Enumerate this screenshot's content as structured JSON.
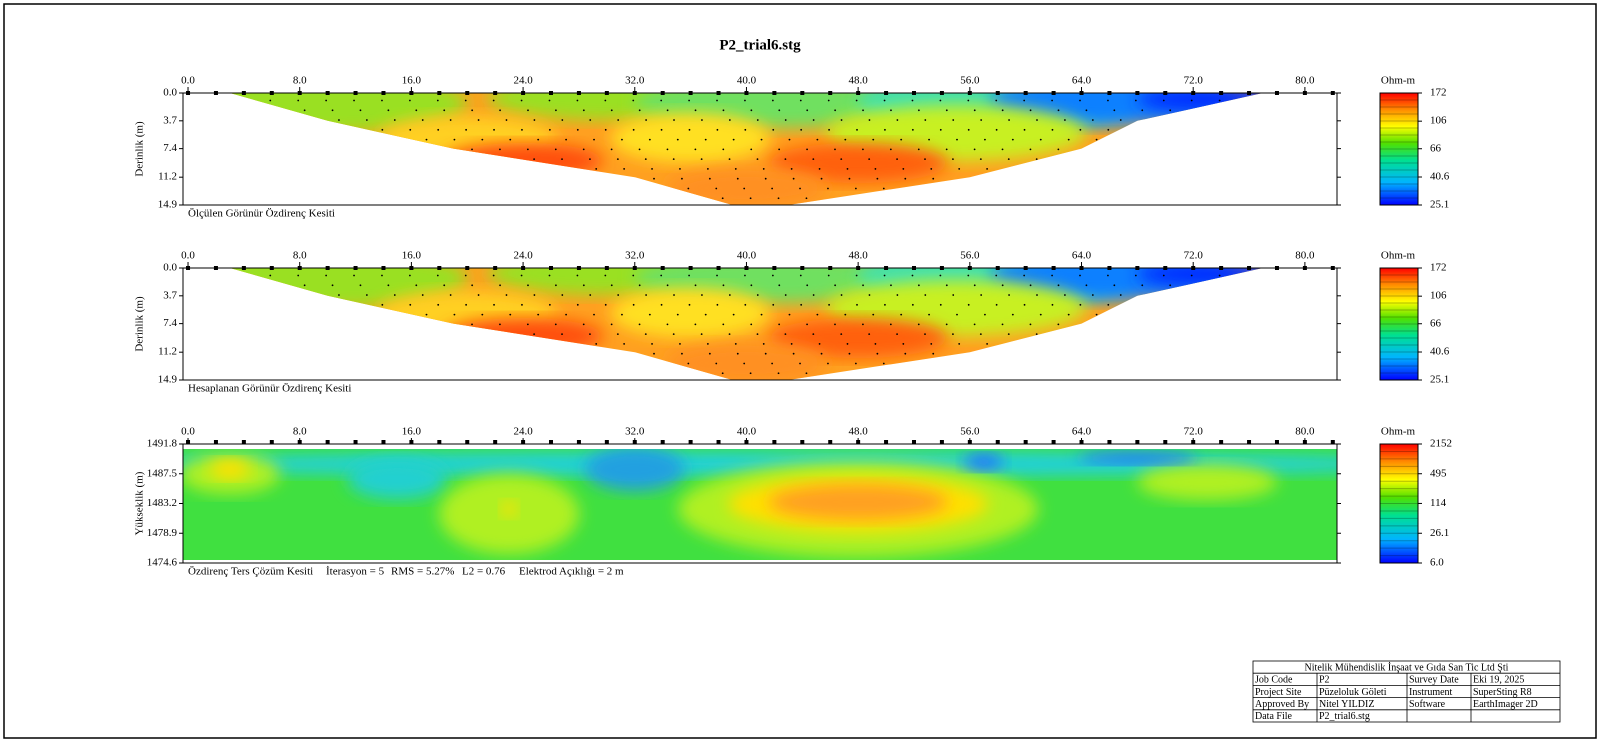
{
  "title": "P2_trial6.stg",
  "chart_data": [
    {
      "type": "contour",
      "caption": [
        "Ölçülen Görünür Özdirenç Kesiti"
      ],
      "y_label": "Derinlik (m)",
      "xlim": [
        -0.36,
        82.3
      ],
      "ylim": [
        0,
        14.9
      ],
      "y_inverted": true,
      "xticks": [
        {
          "value": 0,
          "label": "0.0"
        },
        {
          "value": 8,
          "label": "8.0"
        },
        {
          "value": 16,
          "label": "16.0"
        },
        {
          "value": 24,
          "label": "24.0"
        },
        {
          "value": 32,
          "label": "32.0"
        },
        {
          "value": 40,
          "label": "40.0"
        },
        {
          "value": 48,
          "label": "48.0"
        },
        {
          "value": 56,
          "label": "56.0"
        },
        {
          "value": 64,
          "label": "64.0"
        },
        {
          "value": 72,
          "label": "72.0"
        },
        {
          "value": 80,
          "label": "80.0"
        }
      ],
      "yticks": [
        {
          "value": 0,
          "label": "0.0"
        },
        3.7,
        7.4,
        11.2,
        14.9
      ],
      "colorbar": {
        "label": "Ohm-m",
        "lim": [
          25.1,
          172
        ],
        "log": true,
        "ticks": [
          172,
          106,
          66,
          40.6,
          25.1
        ]
      }
    },
    {
      "type": "contour",
      "caption": [
        "Hesaplanan Görünür Özdirenç Kesiti"
      ],
      "y_label": "Derinlik (m)",
      "xlim": [
        -0.36,
        82.3
      ],
      "ylim": [
        0,
        14.9
      ],
      "y_inverted": true,
      "xticks": [
        {
          "value": 0,
          "label": "0.0"
        },
        {
          "value": 8,
          "label": "8.0"
        },
        {
          "value": 16,
          "label": "16.0"
        },
        {
          "value": 24,
          "label": "24.0"
        },
        {
          "value": 32,
          "label": "32.0"
        },
        {
          "value": 40,
          "label": "40.0"
        },
        {
          "value": 48,
          "label": "48.0"
        },
        {
          "value": 56,
          "label": "56.0"
        },
        {
          "value": 64,
          "label": "64.0"
        },
        {
          "value": 72,
          "label": "72.0"
        },
        {
          "value": 80,
          "label": "80.0"
        }
      ],
      "yticks": [
        {
          "value": 0,
          "label": "0.0"
        },
        3.7,
        7.4,
        11.2,
        14.9
      ],
      "colorbar": {
        "label": "Ohm-m",
        "lim": [
          25.1,
          172
        ],
        "log": true,
        "ticks": [
          172,
          106,
          66,
          40.6,
          25.1
        ]
      }
    },
    {
      "type": "contour",
      "caption": [
        "Özdirenç Ters Çözüm Kesiti",
        "İterasyon = 5",
        "RMS = 5.27%",
        "L2 = 0.76",
        "Elektrod Açıklığı = 2 m"
      ],
      "y_label": "Yükseklik (m)",
      "xlim": [
        -0.36,
        82.3
      ],
      "ylim": [
        1474.6,
        1491.8
      ],
      "y_inverted": false,
      "xticks": [
        {
          "value": 0,
          "label": "0.0"
        },
        {
          "value": 8,
          "label": "8.0"
        },
        {
          "value": 16,
          "label": "16.0"
        },
        {
          "value": 24,
          "label": "24.0"
        },
        {
          "value": 32,
          "label": "32.0"
        },
        {
          "value": 40,
          "label": "40.0"
        },
        {
          "value": 48,
          "label": "48.0"
        },
        {
          "value": 56,
          "label": "56.0"
        },
        {
          "value": 64,
          "label": "64.0"
        },
        {
          "value": 72,
          "label": "72.0"
        },
        {
          "value": 80,
          "label": "80.0"
        }
      ],
      "yticks": [
        1491.8,
        1487.5,
        1483.2,
        1478.9,
        1474.6
      ],
      "colorbar": {
        "label": "Ohm-m",
        "lim": [
          6,
          2152
        ],
        "log": true,
        "ticks": [
          2152,
          495,
          114,
          26.1,
          {
            "value": 6,
            "label": "6.0"
          }
        ]
      }
    }
  ],
  "info_table": {
    "header": "Nitelik Mühendislik İnşaat ve Gıda San Tic Ltd Şti",
    "rows": [
      [
        "Job Code",
        "P2",
        "Survey Date",
        "Eki 19, 2025"
      ],
      [
        "Project Site",
        "Püzeloluk Göleti",
        "Instrument",
        "SuperSting R8"
      ],
      [
        "Approved By",
        "Nitel YILDIZ",
        "Software",
        "EarthImager 2D"
      ],
      [
        "Data File",
        "P2_trial6.stg"
      ]
    ]
  }
}
